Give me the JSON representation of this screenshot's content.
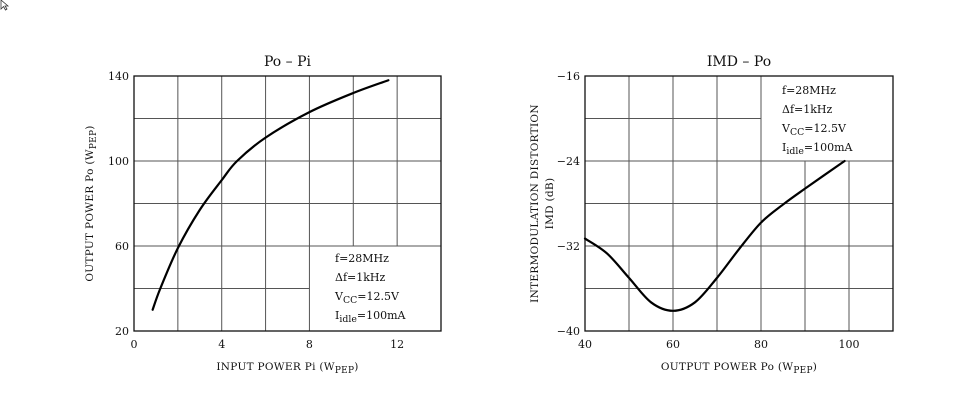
{
  "chart_data": [
    {
      "type": "line",
      "title": "Po – Pi",
      "xlabel": "INPUT POWER   Pi   (W",
      "xlabel_sub": "PEP",
      "ylabel": "OUTPUT POWER   Po   (W",
      "ylabel_sub": "PEP",
      "xlim": [
        0,
        14
      ],
      "ylim": [
        20,
        140
      ],
      "xticks": [
        0,
        4,
        8,
        12
      ],
      "yticks": [
        20,
        60,
        100,
        140
      ],
      "grid": true,
      "series": [
        {
          "name": "Po",
          "x": [
            0.85,
            1.2,
            2,
            3,
            4,
            4.7,
            6,
            8,
            10,
            11.6
          ],
          "y": [
            30,
            40,
            59,
            77,
            91,
            100,
            111,
            123,
            132,
            138
          ]
        }
      ],
      "annotations": [
        {
          "main": "f=28MHz"
        },
        {
          "main": "Δf=1kHz"
        },
        {
          "main": "V",
          "sub": "CC",
          "rest": "=12.5V"
        },
        {
          "main": "I",
          "sub": "idle",
          "rest": "=100mA"
        }
      ],
      "legend_placement": "bottom-right"
    },
    {
      "type": "line",
      "title": "IMD – Po",
      "xlabel": "OUTPUT POWER   Po   (W",
      "xlabel_sub": "PEP",
      "ylabel": "INTERMODULATION DISTORTION",
      "ylabel2": "IMD   (dB)",
      "xlim": [
        40,
        110
      ],
      "ylim": [
        -40,
        -16
      ],
      "xticks": [
        40,
        60,
        80,
        100
      ],
      "yticks": [
        -40,
        -32,
        -24,
        -16
      ],
      "grid": true,
      "series": [
        {
          "name": "IMD",
          "x": [
            40,
            45,
            50,
            55,
            60,
            65,
            70,
            75,
            80,
            85,
            90,
            99
          ],
          "y": [
            -31.3,
            -32.7,
            -35,
            -37.3,
            -38.1,
            -37.3,
            -35,
            -32.3,
            -29.8,
            -28.1,
            -26.6,
            -24
          ]
        }
      ],
      "annotations": [
        {
          "main": "f=28MHz"
        },
        {
          "main": "Δf=1kHz"
        },
        {
          "main": "V",
          "sub": "CC",
          "rest": "=12.5V"
        },
        {
          "main": "I",
          "sub": "idle",
          "rest": "=100mA"
        }
      ],
      "legend_placement": "top-right"
    }
  ]
}
